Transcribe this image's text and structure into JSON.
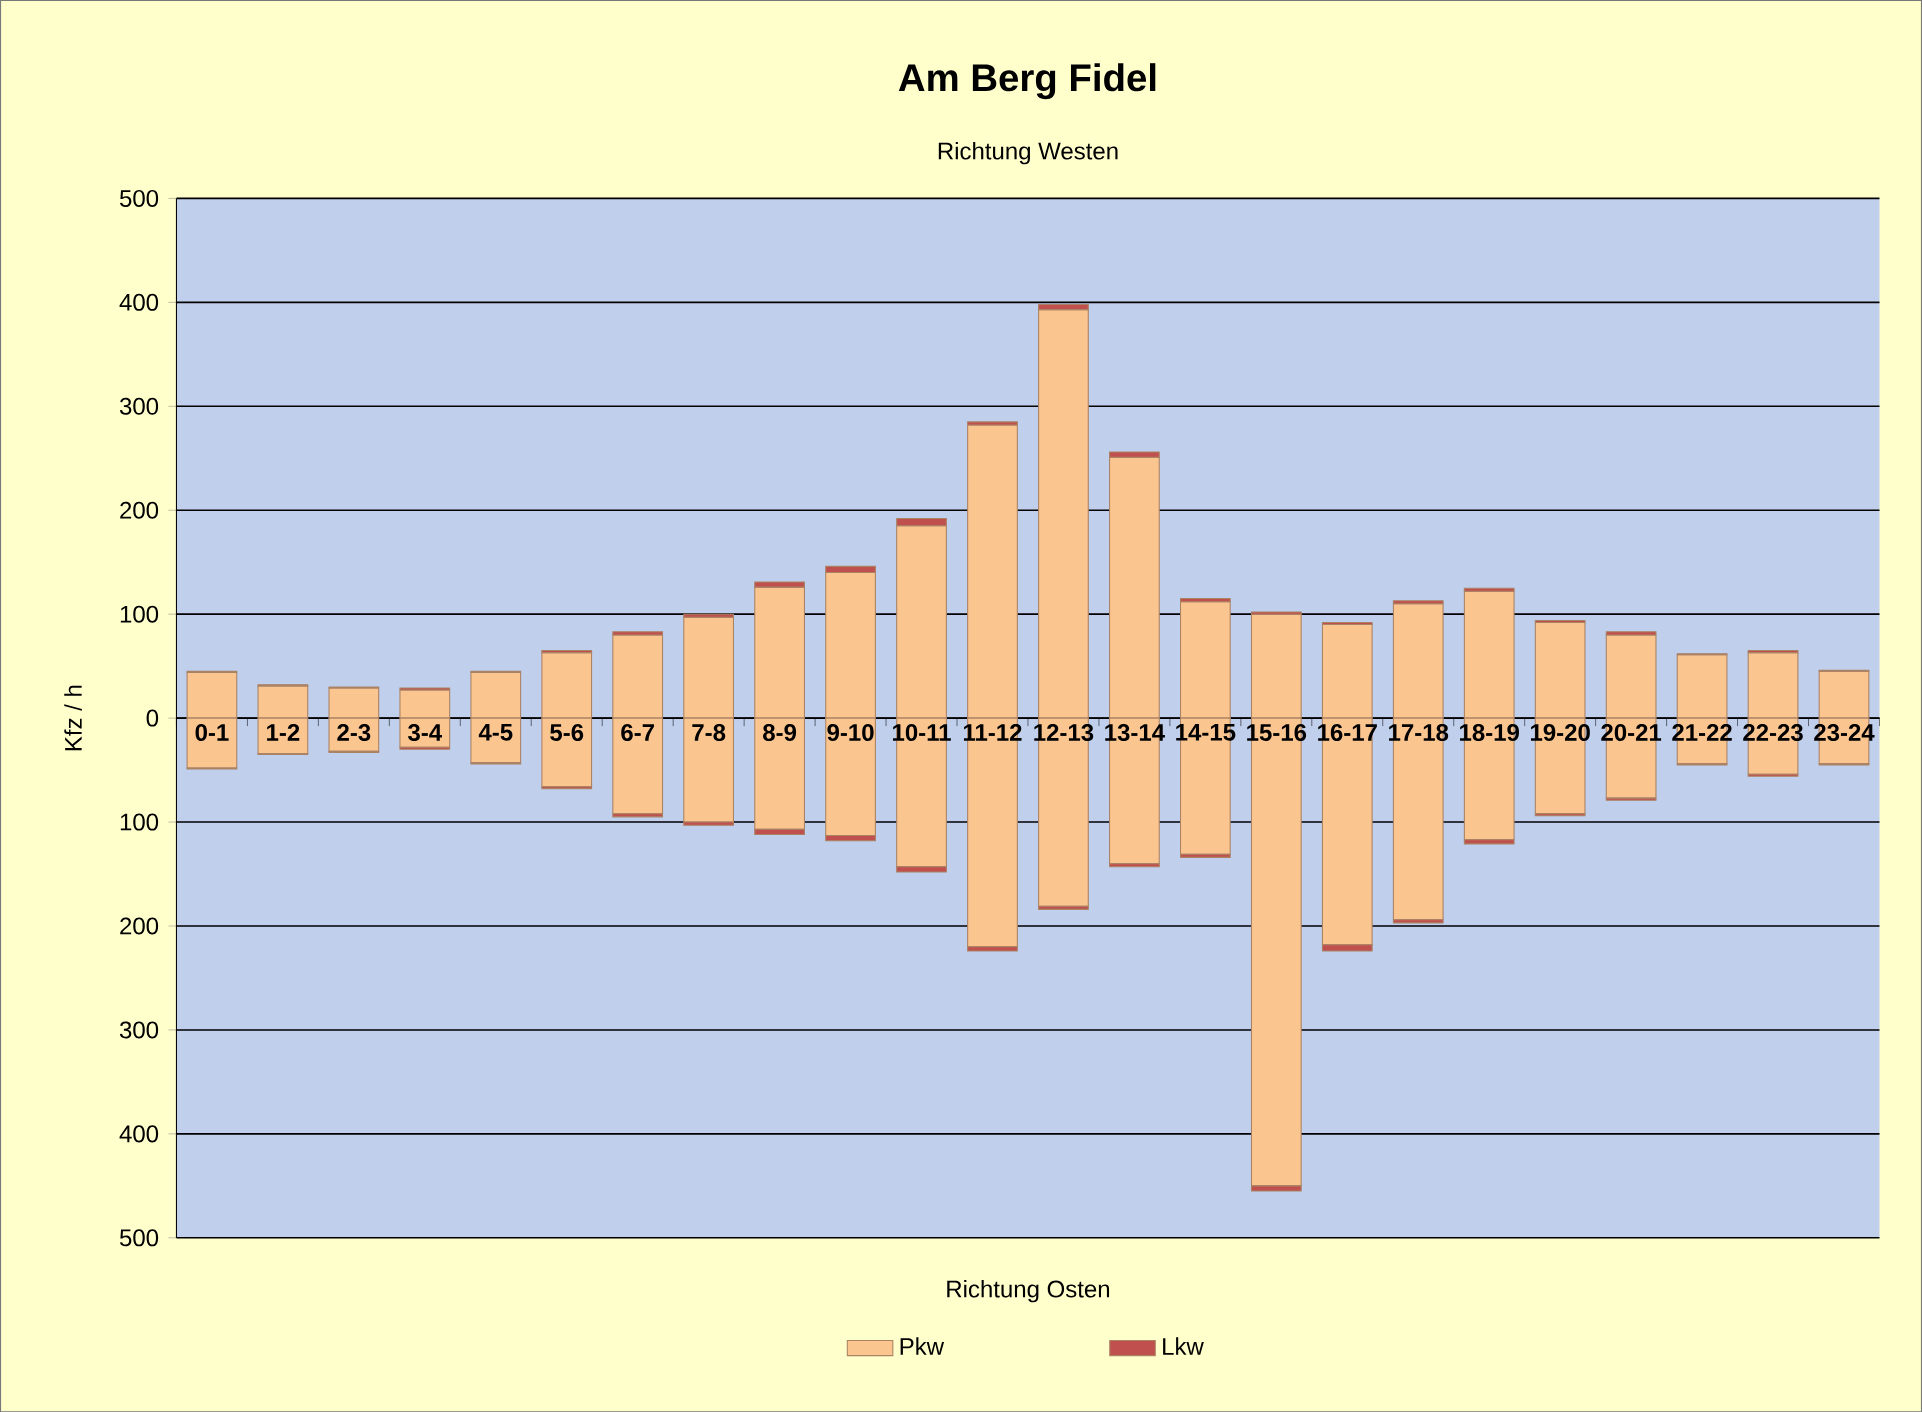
{
  "chart_data": {
    "type": "bar",
    "title": "Am Berg Fidel",
    "subtitle": "Richtung Westen",
    "xlabel": "Richtung Osten",
    "ylabel": "Kfz / h",
    "categories": [
      "0-1",
      "1-2",
      "2-3",
      "3-4",
      "4-5",
      "5-6",
      "6-7",
      "7-8",
      "8-9",
      "9-10",
      "10-11",
      "11-12",
      "12-13",
      "13-14",
      "14-15",
      "15-16",
      "16-17",
      "17-18",
      "18-19",
      "19-20",
      "20-21",
      "21-22",
      "22-23",
      "23-24"
    ],
    "stacked": true,
    "series": [
      {
        "name": "Pkw",
        "color": "#fbc58f",
        "values": [
          44,
          31,
          29,
          27,
          44,
          63,
          80,
          97,
          126,
          140,
          185,
          282,
          393,
          251,
          112,
          100,
          90,
          110,
          122,
          92,
          80,
          61,
          63,
          45
        ]
      },
      {
        "name": "Lkw",
        "color": "#c0504d",
        "values": [
          1,
          1,
          1,
          2,
          1,
          2,
          3,
          3,
          5,
          6,
          7,
          3,
          5,
          5,
          3,
          2,
          2,
          3,
          3,
          2,
          3,
          1,
          2,
          1
        ]
      },
      {
        "color": "#fbc58f",
        "values": [
          -48,
          -34,
          -32,
          -28,
          -43,
          -66,
          -92,
          -100,
          -107,
          -113,
          -143,
          -220,
          -181,
          -140,
          -131,
          -450,
          -218,
          -194,
          -117,
          -92,
          -77,
          -44,
          -54,
          -44
        ]
      },
      {
        "color": "#c0504d",
        "values": [
          -1,
          -1,
          -1,
          -2,
          -1,
          -2,
          -3,
          -3,
          -5,
          -5,
          -5,
          -4,
          -3,
          -3,
          -3,
          -5,
          -6,
          -3,
          -4,
          -2,
          -2,
          -1,
          -2,
          -1
        ]
      }
    ],
    "ylim": [
      -500,
      500
    ],
    "yticks": [
      {
        "value": -500,
        "label": "500"
      },
      {
        "value": -400,
        "label": "400"
      },
      {
        "value": -300,
        "label": "300"
      },
      {
        "value": -200,
        "label": "200"
      },
      {
        "value": -100,
        "label": "100"
      },
      0,
      100,
      200,
      300,
      400,
      500
    ],
    "grid": "y",
    "legend": "bottom"
  }
}
